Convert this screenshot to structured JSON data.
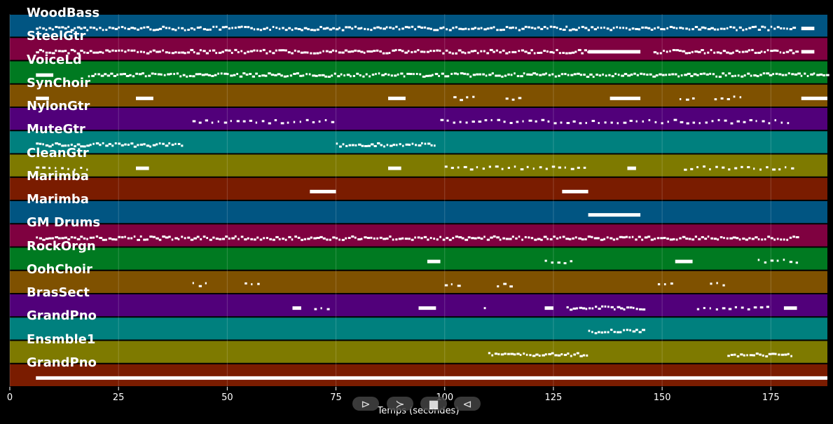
{
  "chart_data": {
    "type": "piano-roll",
    "xlabel": "Temps (secondes)",
    "xlim": [
      0,
      188
    ],
    "x_ticks": [
      0,
      25,
      50,
      75,
      100,
      125,
      150,
      175
    ],
    "tracks": [
      {
        "name": "WoodBass",
        "color": "#015582",
        "segments": [
          [
            6,
            180,
            "dense"
          ],
          [
            182,
            185,
            "block"
          ]
        ]
      },
      {
        "name": "SteelGtr",
        "color": "#7f0140",
        "segments": [
          [
            6,
            40,
            "dense"
          ],
          [
            40,
            133,
            "dense"
          ],
          [
            133,
            145,
            "block"
          ],
          [
            148,
            181,
            "dense"
          ],
          [
            182,
            185,
            "block"
          ]
        ]
      },
      {
        "name": "VoiceLd",
        "color": "#007a21",
        "segments": [
          [
            6,
            10,
            "block"
          ],
          [
            18,
            188,
            "dense"
          ]
        ]
      },
      {
        "name": "SynChoir",
        "color": "#7f5100",
        "segments": [
          [
            6,
            9,
            "block"
          ],
          [
            29,
            33,
            "block"
          ],
          [
            87,
            91,
            "block"
          ],
          [
            102,
            107,
            "sparse"
          ],
          [
            114,
            118,
            "sparse"
          ],
          [
            138,
            145,
            "block"
          ],
          [
            154,
            157,
            "sparse"
          ],
          [
            162,
            168,
            "sparse"
          ],
          [
            182,
            188,
            "block"
          ]
        ]
      },
      {
        "name": "NylonGtr",
        "color": "#51007a",
        "segments": [
          [
            42,
            74,
            "sparse"
          ],
          [
            99,
            180,
            "sparse"
          ]
        ]
      },
      {
        "name": "MuteGtr",
        "color": "#00807e",
        "segments": [
          [
            6,
            40,
            "dense"
          ],
          [
            75,
            98,
            "dense"
          ]
        ]
      },
      {
        "name": "CleanGtr",
        "color": "#7e7a00",
        "segments": [
          [
            6,
            19,
            "sparse"
          ],
          [
            29,
            32,
            "block"
          ],
          [
            87,
            90,
            "block"
          ],
          [
            100,
            133,
            "sparse"
          ],
          [
            142,
            144,
            "block"
          ],
          [
            155,
            181,
            "sparse"
          ]
        ]
      },
      {
        "name": "Marimba",
        "color": "#7a1c00",
        "segments": [
          [
            69,
            75,
            "block"
          ],
          [
            127,
            133,
            "block"
          ]
        ]
      },
      {
        "name": "Marimba",
        "color": "#015582",
        "segments": [
          [
            133,
            145,
            "block"
          ]
        ]
      },
      {
        "name": "GM Drums",
        "color": "#7f0140",
        "segments": [
          [
            6,
            181,
            "dense"
          ]
        ]
      },
      {
        "name": "RockOrgn",
        "color": "#007a21",
        "segments": [
          [
            96,
            99,
            "block"
          ],
          [
            123,
            130,
            "sparse"
          ],
          [
            153,
            157,
            "block"
          ],
          [
            172,
            182,
            "sparse"
          ]
        ]
      },
      {
        "name": "OohChoir",
        "color": "#7f5100",
        "segments": [
          [
            42,
            46,
            "sparse"
          ],
          [
            54,
            57,
            "sparse"
          ],
          [
            100,
            103,
            "sparse"
          ],
          [
            112,
            115,
            "sparse"
          ],
          [
            149,
            152,
            "sparse"
          ],
          [
            161,
            164,
            "sparse"
          ]
        ]
      },
      {
        "name": "BrasSect",
        "color": "#51007a",
        "segments": [
          [
            65,
            67,
            "block"
          ],
          [
            70,
            74,
            "sparse"
          ],
          [
            94,
            98,
            "block"
          ],
          [
            109,
            110,
            "sparse"
          ],
          [
            123,
            125,
            "block"
          ],
          [
            128,
            146,
            "dense"
          ],
          [
            158,
            175,
            "sparse"
          ],
          [
            178,
            181,
            "block"
          ]
        ]
      },
      {
        "name": "GrandPno",
        "color": "#00807e",
        "segments": [
          [
            133,
            146,
            "dense"
          ]
        ]
      },
      {
        "name": "Ensmble1",
        "color": "#7e7a00",
        "segments": [
          [
            110,
            133,
            "dense"
          ],
          [
            165,
            180,
            "dense"
          ]
        ]
      },
      {
        "name": "GrandPno",
        "color": "#7a1c00",
        "segments": [
          [
            6,
            188,
            "block"
          ]
        ]
      }
    ]
  },
  "controls": {
    "play_glyph": "⊳",
    "next_glyph": "≻",
    "stop_glyph": "■",
    "back_glyph": "⊲"
  }
}
